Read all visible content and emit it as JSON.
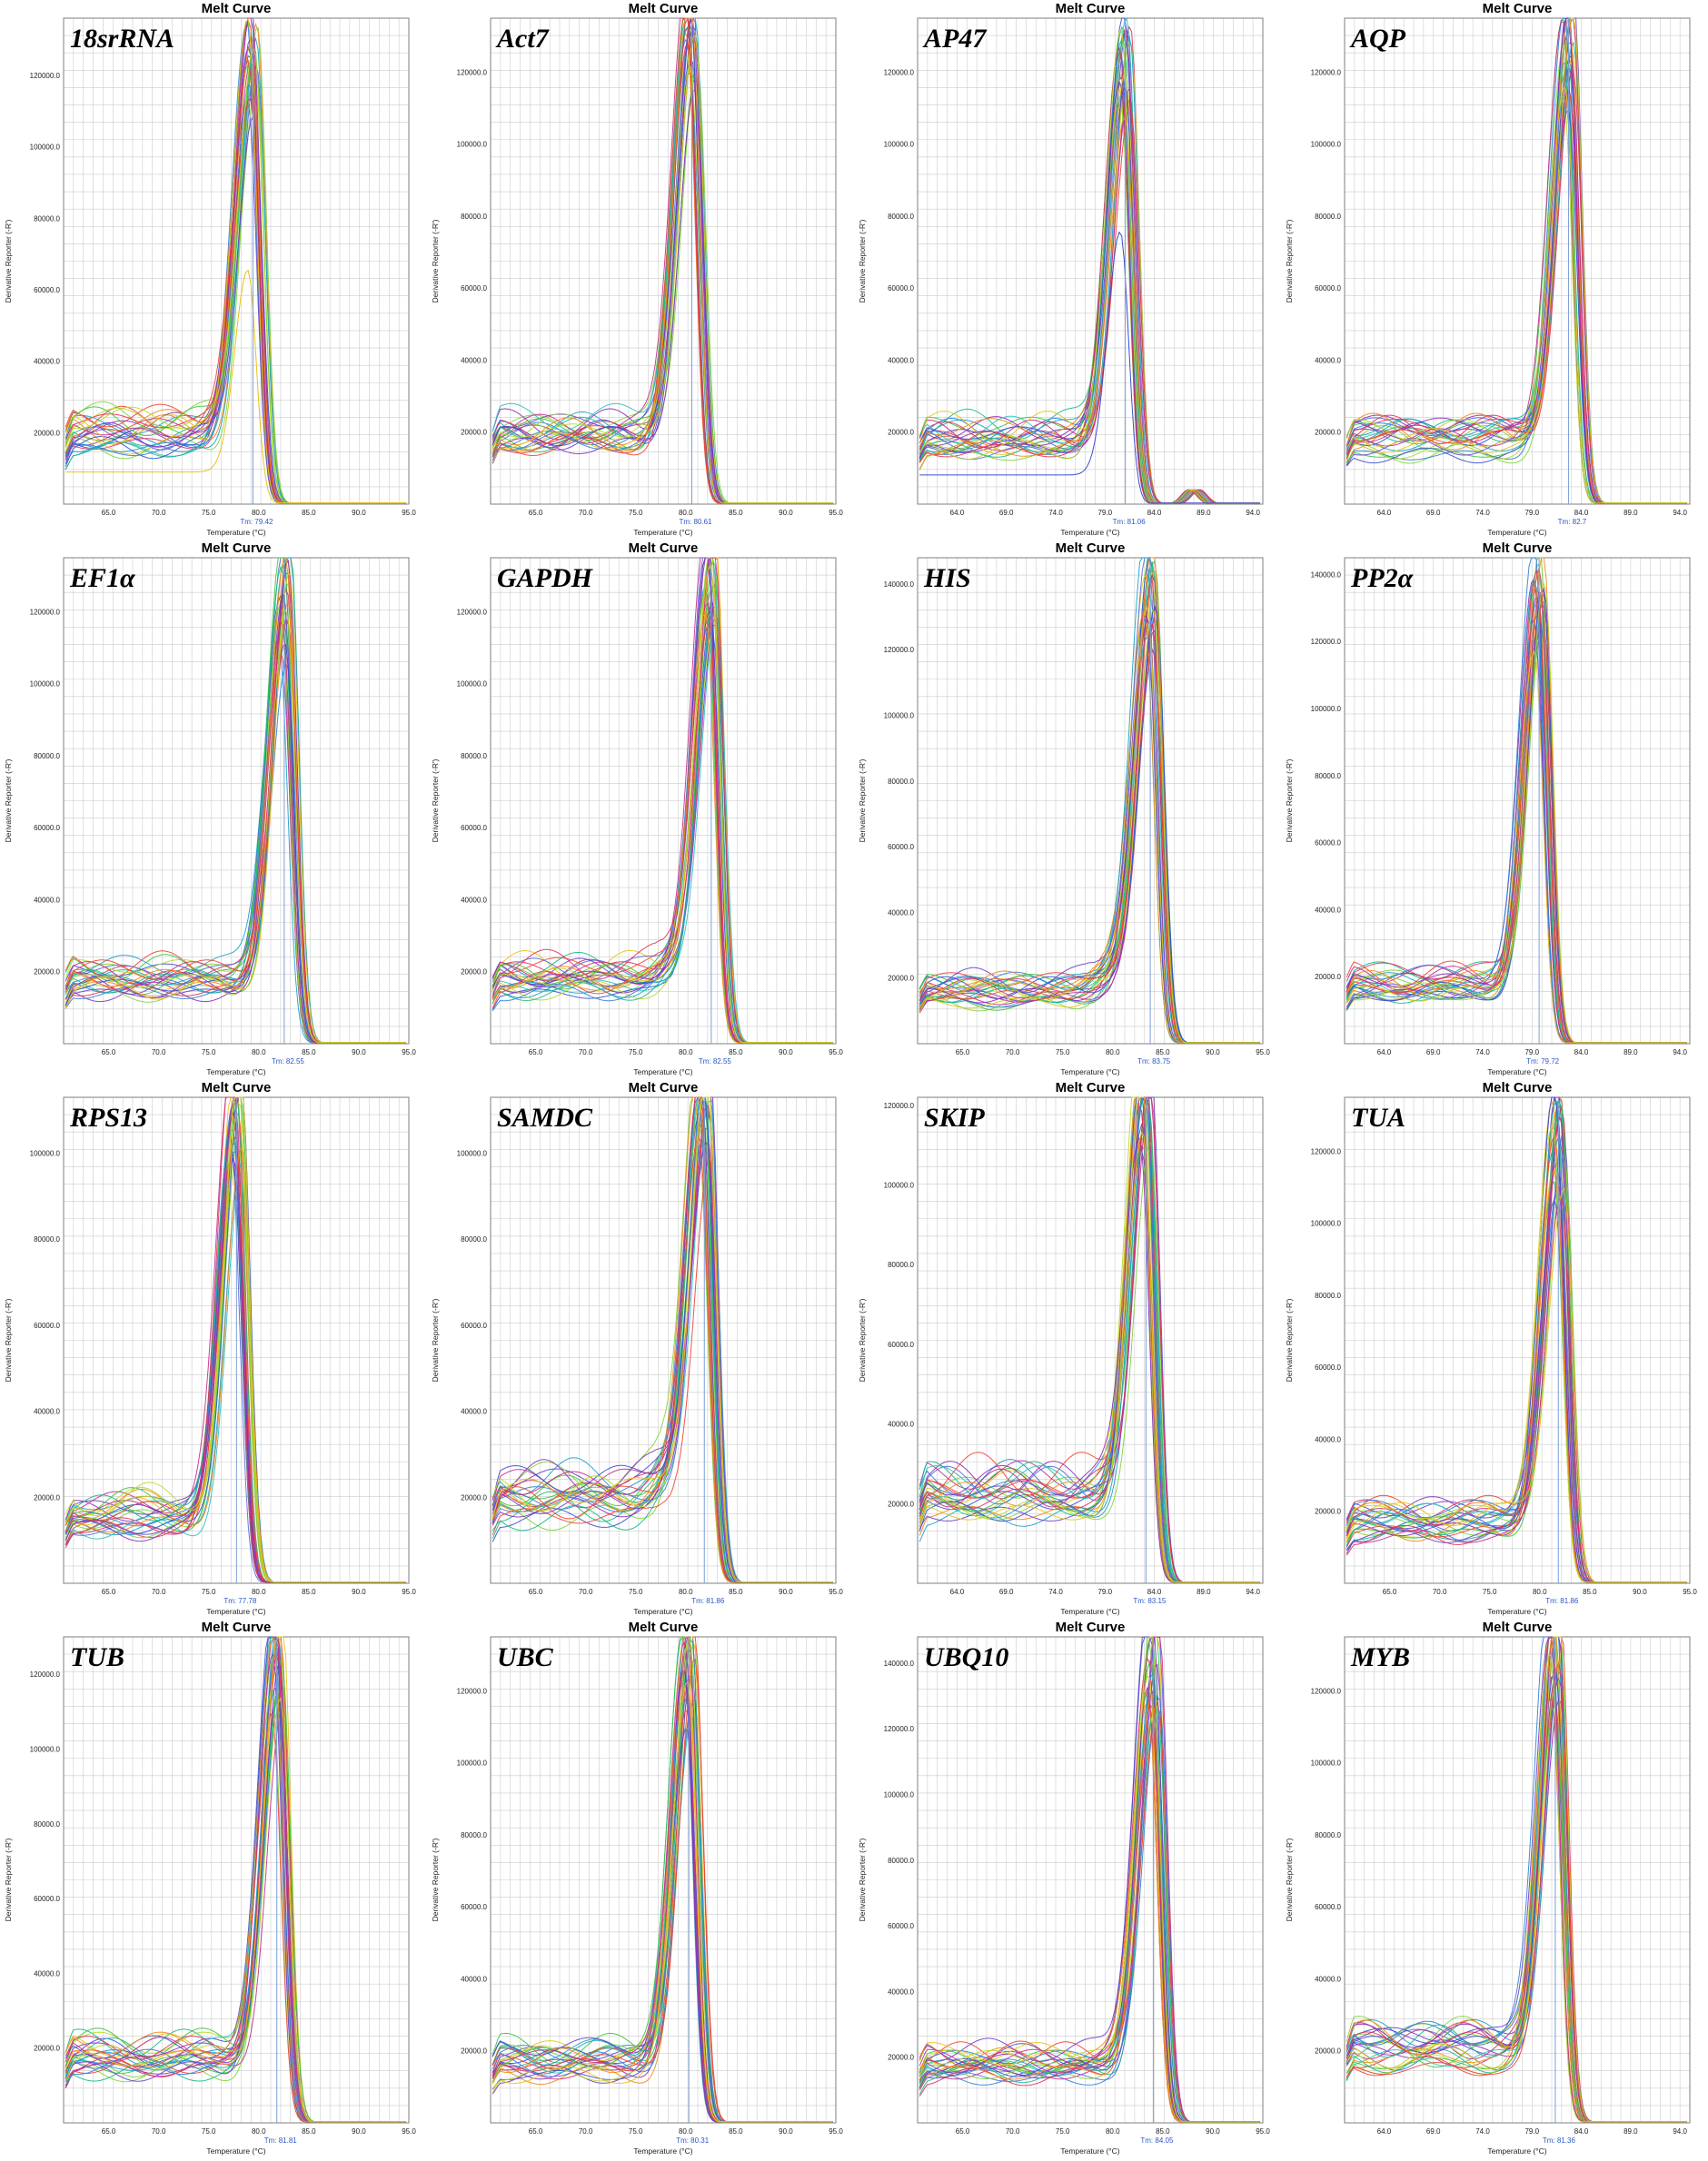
{
  "colors": {
    "grid": "#cccccc",
    "frame": "#7f7f7f",
    "tm_line": "#7a9fd8",
    "tm_text": "#2a56c6",
    "curves": [
      "#7fd43a",
      "#3cc43c",
      "#17b88a",
      "#1aa0c8",
      "#2f7fd9",
      "#3a4fcf",
      "#6a3fc8",
      "#8a2fb8",
      "#c42e8c",
      "#e0305a",
      "#ee4433",
      "#f28a1a",
      "#e8c21a",
      "#b8d82a",
      "#2ec0c0",
      "#5a6ad8"
    ]
  },
  "chart_data": [
    {
      "type": "line",
      "title": "Melt Curve",
      "gene": "18srRNA",
      "xlabel": "Temperature (°C)",
      "ylabel": "Derivative Reporter (-R')",
      "xlim": [
        60.5,
        95.0
      ],
      "ylim": [
        0,
        136000
      ],
      "xticks": [
        "65.0",
        "70.0",
        "75.0",
        "80.0",
        "85.0",
        "90.0",
        "95.0"
      ],
      "yticks": [
        "20000.0",
        "40000.0",
        "60000.0",
        "80000.0",
        "100000.0",
        "120000.0"
      ],
      "tm_label": "Tm: 79.42",
      "tm": 79.42,
      "peak": 112000,
      "baseline": 20000,
      "shoulder": 0,
      "bump": 0,
      "outlier": 57000
    },
    {
      "type": "line",
      "title": "Melt Curve",
      "gene": "Act7",
      "xlabel": "Temperature (°C)",
      "ylabel": "Derivative Reporter (-R')",
      "xlim": [
        60.5,
        95.0
      ],
      "ylim": [
        0,
        135000
      ],
      "xticks": [
        "65.0",
        "70.0",
        "75.0",
        "80.0",
        "85.0",
        "90.0",
        "95.0"
      ],
      "yticks": [
        "20000.0",
        "40000.0",
        "60000.0",
        "80000.0",
        "100000.0",
        "120000.0"
      ],
      "tm_label": "Tm: 80.61",
      "tm": 80.61,
      "peak": 118000,
      "baseline": 20000,
      "shoulder": 0,
      "bump": 0
    },
    {
      "type": "line",
      "title": "Melt Curve",
      "gene": "AP47",
      "xlabel": "Temperature (°C)",
      "ylabel": "Derivative Reporter (-R')",
      "xlim": [
        60.0,
        95.0
      ],
      "ylim": [
        0,
        135000
      ],
      "xticks": [
        "64.0",
        "69.0",
        "74.0",
        "79.0",
        "84.0",
        "89.0",
        "94.0"
      ],
      "yticks": [
        "20000.0",
        "40000.0",
        "60000.0",
        "80000.0",
        "100000.0",
        "120000.0"
      ],
      "tm_label": "Tm: 81.06",
      "tm": 81.06,
      "peak": 110000,
      "baseline": 18000,
      "shoulder": 0,
      "bump": 4000,
      "outlier": 68000
    },
    {
      "type": "line",
      "title": "Melt Curve",
      "gene": "AQP",
      "xlabel": "Temperature (°C)",
      "ylabel": "Derivative Reporter (-R')",
      "xlim": [
        60.0,
        95.0
      ],
      "ylim": [
        0,
        135000
      ],
      "xticks": [
        "64.0",
        "69.0",
        "74.0",
        "79.0",
        "84.0",
        "89.0",
        "94.0"
      ],
      "yticks": [
        "20000.0",
        "40000.0",
        "60000.0",
        "80000.0",
        "100000.0",
        "120000.0"
      ],
      "tm_label": "Tm: 82.7",
      "tm": 82.7,
      "peak": 118000,
      "baseline": 18000,
      "shoulder": 0,
      "bump": 0
    },
    {
      "type": "line",
      "title": "Melt Curve",
      "gene": "EF1α",
      "xlabel": "Temperature (°C)",
      "ylabel": "Derivative Reporter (-R')",
      "xlim": [
        60.5,
        95.0
      ],
      "ylim": [
        0,
        135000
      ],
      "xticks": [
        "65.0",
        "70.0",
        "75.0",
        "80.0",
        "85.0",
        "90.0",
        "95.0"
      ],
      "yticks": [
        "20000.0",
        "40000.0",
        "60000.0",
        "80000.0",
        "100000.0",
        "120000.0"
      ],
      "tm_label": "Tm: 82.55",
      "tm": 82.55,
      "peak": 113000,
      "baseline": 18000,
      "shoulder": 0,
      "bump": 0
    },
    {
      "type": "line",
      "title": "Melt Curve",
      "gene": "GAPDH",
      "xlabel": "Temperature (°C)",
      "ylabel": "Derivative Reporter (-R')",
      "xlim": [
        60.5,
        95.0
      ],
      "ylim": [
        0,
        135000
      ],
      "xticks": [
        "65.0",
        "70.0",
        "75.0",
        "80.0",
        "85.0",
        "90.0",
        "95.0"
      ],
      "yticks": [
        "20000.0",
        "40000.0",
        "60000.0",
        "80000.0",
        "100000.0",
        "120000.0"
      ],
      "tm_label": "Tm: 82.55",
      "tm": 82.55,
      "peak": 115000,
      "baseline": 18000,
      "shoulder": 8000,
      "bump": 0
    },
    {
      "type": "line",
      "title": "Melt Curve",
      "gene": "HIS",
      "xlabel": "Temperature (°C)",
      "ylabel": "Derivative Reporter (-R')",
      "xlim": [
        60.5,
        95.0
      ],
      "ylim": [
        0,
        148000
      ],
      "xticks": [
        "65.0",
        "70.0",
        "75.0",
        "80.0",
        "85.0",
        "90.0",
        "95.0"
      ],
      "yticks": [
        "20000.0",
        "40000.0",
        "60000.0",
        "80000.0",
        "100000.0",
        "120000.0",
        "140000.0"
      ],
      "tm_label": "Tm: 83.75",
      "tm": 83.75,
      "peak": 128000,
      "baseline": 16000,
      "shoulder": 14000,
      "bump": 0
    },
    {
      "type": "line",
      "title": "Melt Curve",
      "gene": "PP2α",
      "xlabel": "Temperature (°C)",
      "ylabel": "Derivative Reporter (-R')",
      "xlim": [
        60.0,
        95.0
      ],
      "ylim": [
        0,
        145000
      ],
      "xticks": [
        "64.0",
        "69.0",
        "74.0",
        "79.0",
        "84.0",
        "89.0",
        "94.0"
      ],
      "yticks": [
        "20000.0",
        "40000.0",
        "60000.0",
        "80000.0",
        "100000.0",
        "120000.0",
        "140000.0"
      ],
      "tm_label": "Tm: 79.72",
      "tm": 79.72,
      "peak": 126000,
      "baseline": 18000,
      "shoulder": 0,
      "bump": 0
    },
    {
      "type": "line",
      "title": "Melt Curve",
      "gene": "RPS13",
      "xlabel": "Temperature (°C)",
      "ylabel": "Derivative Reporter (-R')",
      "xlim": [
        60.5,
        95.0
      ],
      "ylim": [
        0,
        113000
      ],
      "xticks": [
        "65.0",
        "70.0",
        "75.0",
        "80.0",
        "85.0",
        "90.0",
        "95.0"
      ],
      "yticks": [
        "20000.0",
        "40000.0",
        "60000.0",
        "80000.0",
        "100000.0"
      ],
      "tm_label": "Tm: 77.78",
      "tm": 77.78,
      "peak": 102000,
      "baseline": 16000,
      "shoulder": 0,
      "bump": 0
    },
    {
      "type": "line",
      "title": "Melt Curve",
      "gene": "SAMDC",
      "xlabel": "Temperature (°C)",
      "ylabel": "Derivative Reporter (-R')",
      "xlim": [
        60.5,
        95.0
      ],
      "ylim": [
        0,
        113000
      ],
      "xticks": [
        "65.0",
        "70.0",
        "75.0",
        "80.0",
        "85.0",
        "90.0",
        "95.0"
      ],
      "yticks": [
        "20000.0",
        "40000.0",
        "60000.0",
        "80000.0",
        "100000.0"
      ],
      "tm_label": "Tm: 81.86",
      "tm": 81.86,
      "peak": 100000,
      "baseline": 20000,
      "shoulder": 10000,
      "bump": 0
    },
    {
      "type": "line",
      "title": "Melt Curve",
      "gene": "SKIP",
      "xlabel": "Temperature (°C)",
      "ylabel": "Derivative Reporter (-R')",
      "xlim": [
        60.0,
        95.0
      ],
      "ylim": [
        0,
        122000
      ],
      "xticks": [
        "64.0",
        "69.0",
        "74.0",
        "79.0",
        "84.0",
        "89.0",
        "94.0"
      ],
      "yticks": [
        "20000.0",
        "40000.0",
        "60000.0",
        "80000.0",
        "100000.0",
        "120000.0"
      ],
      "tm_label": "Tm: 83.15",
      "tm": 83.15,
      "peak": 108000,
      "baseline": 22000,
      "shoulder": 0,
      "bump": 0
    },
    {
      "type": "line",
      "title": "Melt Curve",
      "gene": "TUA",
      "xlabel": "Temperature (°C)",
      "ylabel": "Derivative Reporter (-R')",
      "xlim": [
        60.5,
        95.0
      ],
      "ylim": [
        0,
        135000
      ],
      "xticks": [
        "65.0",
        "70.0",
        "75.0",
        "80.0",
        "85.0",
        "90.0",
        "95.0"
      ],
      "yticks": [
        "20000.0",
        "40000.0",
        "60000.0",
        "80000.0",
        "100000.0",
        "120000.0"
      ],
      "tm_label": "Tm: 81.86",
      "tm": 81.86,
      "peak": 115000,
      "baseline": 17000,
      "shoulder": 0,
      "bump": 0
    },
    {
      "type": "line",
      "title": "Melt Curve",
      "gene": "TUB",
      "xlabel": "Temperature (°C)",
      "ylabel": "Derivative Reporter (-R')",
      "xlim": [
        60.5,
        95.0
      ],
      "ylim": [
        0,
        130000
      ],
      "xticks": [
        "65.0",
        "70.0",
        "75.0",
        "80.0",
        "85.0",
        "90.0",
        "95.0"
      ],
      "yticks": [
        "20000.0",
        "40000.0",
        "60000.0",
        "80000.0",
        "100000.0",
        "120000.0"
      ],
      "tm_label": "Tm: 81.81",
      "tm": 81.81,
      "peak": 112000,
      "baseline": 18000,
      "shoulder": 0,
      "bump": 0
    },
    {
      "type": "line",
      "title": "Melt Curve",
      "gene": "UBC",
      "xlabel": "Temperature (°C)",
      "ylabel": "Derivative Reporter (-R')",
      "xlim": [
        60.5,
        95.0
      ],
      "ylim": [
        0,
        135000
      ],
      "xticks": [
        "65.0",
        "70.0",
        "75.0",
        "80.0",
        "85.0",
        "90.0",
        "95.0"
      ],
      "yticks": [
        "20000.0",
        "40000.0",
        "60000.0",
        "80000.0",
        "100000.0",
        "120000.0"
      ],
      "tm_label": "Tm: 80.31",
      "tm": 80.31,
      "peak": 115000,
      "baseline": 17000,
      "shoulder": 0,
      "bump": 0
    },
    {
      "type": "line",
      "title": "Melt Curve",
      "gene": "UBQ10",
      "xlabel": "Temperature (°C)",
      "ylabel": "Derivative Reporter (-R')",
      "xlim": [
        60.5,
        95.0
      ],
      "ylim": [
        0,
        148000
      ],
      "xticks": [
        "65.0",
        "70.0",
        "75.0",
        "80.0",
        "85.0",
        "90.0",
        "95.0"
      ],
      "yticks": [
        "20000.0",
        "40000.0",
        "60000.0",
        "80000.0",
        "100000.0",
        "120000.0",
        "140000.0"
      ],
      "tm_label": "Tm: 84.05",
      "tm": 84.05,
      "peak": 132000,
      "baseline": 18000,
      "shoulder": 0,
      "bump": 0
    },
    {
      "type": "line",
      "title": "Melt Curve",
      "gene": "MYB",
      "xlabel": "Temperature (°C)",
      "ylabel": "Derivative Reporter (-R')",
      "xlim": [
        60.0,
        95.0
      ],
      "ylim": [
        0,
        135000
      ],
      "xticks": [
        "64.0",
        "69.0",
        "74.0",
        "79.0",
        "84.0",
        "89.0",
        "94.0"
      ],
      "yticks": [
        "20000.0",
        "40000.0",
        "60000.0",
        "80000.0",
        "100000.0",
        "120000.0"
      ],
      "tm_label": "Tm: 81.36",
      "tm": 81.36,
      "peak": 118000,
      "baseline": 20000,
      "shoulder": 0,
      "bump": 0
    }
  ]
}
